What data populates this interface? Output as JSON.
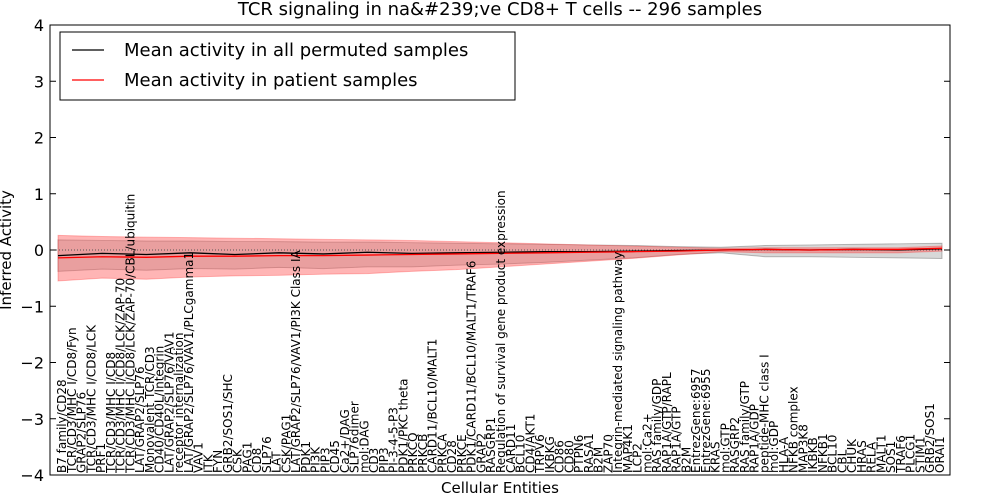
{
  "chart_data": {
    "type": "line",
    "title": "TCR signaling in na&#239;ve CD8+ T cells -- 296 samples",
    "xlabel": "Cellular Entities",
    "ylabel": "Inferred Activity",
    "ylim": [
      -4,
      4
    ],
    "yticks": [
      -4,
      -3,
      -2,
      -1,
      0,
      1,
      2,
      3,
      4
    ],
    "reference_line": 0,
    "legend": {
      "placement": "top-left",
      "entries": [
        {
          "label": "Mean activity in all permuted samples",
          "color": "#000000"
        },
        {
          "label": "Mean activity in patient samples",
          "color": "#ff0000"
        }
      ]
    },
    "categories": [
      "B7 family/CD28",
      "TCR/CD3/MHC I/CD8/Fyn",
      "GRAP2/SLP76",
      "TCR/CD3/MHC I/CD8/LCK",
      "PRF1",
      "TCR/CD3/MHC I/CD8",
      "TCR/CD3/MHC I/CD8/LCK/ZAP-70",
      "TCR/CD3/MHC I/CD8/LCK/ZAP-70/CBL/ubiquitin",
      "LAT/GRAP2/SLP76",
      "Monovalent TCR/CD3",
      "CD40/CD40L/Integrin",
      "LAT/GRAP2/SLP76/VAV1",
      "receptor internalization",
      "LAT/GRAP2/SLP76/VAV1/PLCgamma1",
      "VAV1",
      "ITK",
      "FYN",
      "GRB2/SOS1/SHC",
      "CSK",
      "PAG1",
      "CD8",
      "SLP76",
      "LAT",
      "CSK/PAG1",
      "LAT/GRAP2/SLP76/VAV1/PI3K Class IA",
      "PDK1",
      "PI3K",
      "PIP3",
      "CD45",
      "Ca2+/DAG",
      "SLP76dimer",
      "mol:DAG",
      "CD3",
      "PIP3",
      "PI-3-4-5-P3",
      "PDK1/PKC theta",
      "PRKCQ",
      "PRKCB",
      "CARD11/BCL10/MALT1",
      "PRKCA",
      "CD28",
      "PRKCE",
      "PDK1/CARD11/BCL10/MALT1/TRAF6",
      "GRAP2",
      "RASGRP1",
      "Regulation of survival gene product expression",
      "CARD11",
      "BCL10",
      "CD4/AKT1",
      "TRPV6",
      "IKBKG",
      "CD86",
      "CD80",
      "PTPN6",
      "RASA1",
      "B2M",
      "ZAP70",
      "Integrin-mediated signaling pathway",
      "MAP4K1",
      "LCP2",
      "mol:Ca2+",
      "RAS family/GDP",
      "RAP1A/GTP/RAPL",
      "RAP1A/GTP",
      "B2M",
      "EntrezGene:6957",
      "EntrezGene:6955",
      "KRAS",
      "mol:GTP",
      "RASGRP2",
      "RAS family/GTP",
      "RAP1A/GDP",
      "peptide-MHC class I",
      "mol:GDP",
      "HLA-A",
      "NFKB complex",
      "MAP3K8",
      "IKBKB",
      "NFKB1",
      "BCL10",
      "CBL",
      "CHUK",
      "HRAS",
      "RELA",
      "MALT1",
      "SOS1",
      "TRAF6",
      "PLCG1",
      "STIM1",
      "GRB2/SOS1",
      "ORAI1"
    ],
    "series": [
      {
        "name": "Mean activity in all permuted samples",
        "color": "#000000",
        "x": [
          0,
          0.05,
          0.1,
          0.15,
          0.2,
          0.25,
          0.3,
          0.35,
          0.4,
          0.45,
          0.5,
          0.55,
          0.6,
          0.65,
          0.7,
          0.75,
          0.8,
          0.85,
          0.9,
          0.95,
          1
        ],
        "values": [
          -0.1,
          -0.06,
          -0.08,
          -0.05,
          -0.08,
          -0.05,
          -0.07,
          -0.04,
          -0.06,
          -0.05,
          -0.04,
          -0.03,
          -0.03,
          -0.02,
          -0.01,
          0.0,
          0.01,
          0.0,
          0.01,
          0.0,
          0.02
        ],
        "band_lower": [
          -0.38,
          -0.34,
          -0.36,
          -0.33,
          -0.34,
          -0.31,
          -0.33,
          -0.3,
          -0.3,
          -0.27,
          -0.25,
          -0.22,
          -0.18,
          -0.14,
          -0.08,
          -0.05,
          -0.12,
          -0.12,
          -0.13,
          -0.14,
          -0.15
        ],
        "band_upper": [
          0.18,
          0.17,
          0.16,
          0.16,
          0.15,
          0.15,
          0.14,
          0.14,
          0.13,
          0.12,
          0.11,
          0.1,
          0.09,
          0.08,
          0.06,
          0.05,
          0.08,
          0.09,
          0.1,
          0.11,
          0.12
        ]
      },
      {
        "name": "Mean activity in patient samples",
        "color": "#ff0000",
        "x": [
          0,
          0.05,
          0.1,
          0.15,
          0.2,
          0.25,
          0.3,
          0.35,
          0.4,
          0.45,
          0.5,
          0.55,
          0.6,
          0.65,
          0.7,
          0.75,
          0.8,
          0.85,
          0.9,
          0.95,
          1
        ],
        "values": [
          -0.14,
          -0.12,
          -0.13,
          -0.11,
          -0.11,
          -0.1,
          -0.1,
          -0.09,
          -0.08,
          -0.07,
          -0.06,
          -0.05,
          -0.04,
          -0.03,
          -0.02,
          0.0,
          0.01,
          0.0,
          0.01,
          0.01,
          0.03
        ],
        "band_lower": [
          -0.55,
          -0.5,
          -0.52,
          -0.48,
          -0.46,
          -0.45,
          -0.43,
          -0.42,
          -0.38,
          -0.35,
          -0.3,
          -0.25,
          -0.2,
          -0.15,
          -0.09,
          -0.03,
          -0.05,
          -0.05,
          -0.05,
          -0.05,
          -0.02
        ],
        "band_upper": [
          0.26,
          0.24,
          0.23,
          0.22,
          0.21,
          0.2,
          0.19,
          0.18,
          0.17,
          0.15,
          0.13,
          0.11,
          0.09,
          0.07,
          0.05,
          0.03,
          0.04,
          0.04,
          0.04,
          0.04,
          0.07
        ]
      }
    ]
  }
}
